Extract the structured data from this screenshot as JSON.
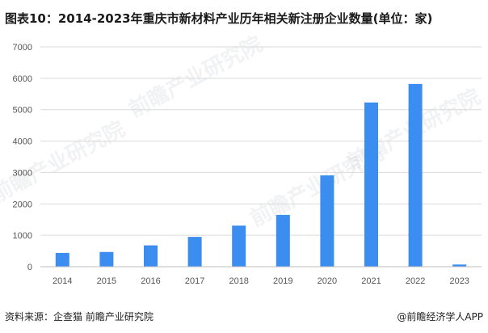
{
  "title": "图表10：2014-2023年重庆市新材料产业历年相关新注册企业数量(单位：家)",
  "footer": {
    "source": "资料来源：企查猫 前瞻产业研究院",
    "brand": "@前瞻经济学人APP"
  },
  "watermark": "前瞻产业研究院",
  "colors": {
    "bar": "#3c8df0",
    "grid": "#d9d9d9",
    "axis": "#bfbfbf",
    "tick": "#555555"
  },
  "chart_data": {
    "type": "bar",
    "title": "图表10：2014-2023年重庆市新材料产业历年相关新注册企业数量(单位：家)",
    "xlabel": "",
    "ylabel": "",
    "categories": [
      "2014",
      "2015",
      "2016",
      "2017",
      "2018",
      "2019",
      "2020",
      "2021",
      "2022",
      "2023"
    ],
    "values": [
      440,
      470,
      680,
      950,
      1310,
      1650,
      2910,
      5230,
      5820,
      70
    ],
    "ylim": [
      0,
      7000
    ],
    "yticks": [
      0,
      1000,
      2000,
      3000,
      4000,
      5000,
      6000,
      7000
    ],
    "grid": true,
    "legend": "none"
  }
}
